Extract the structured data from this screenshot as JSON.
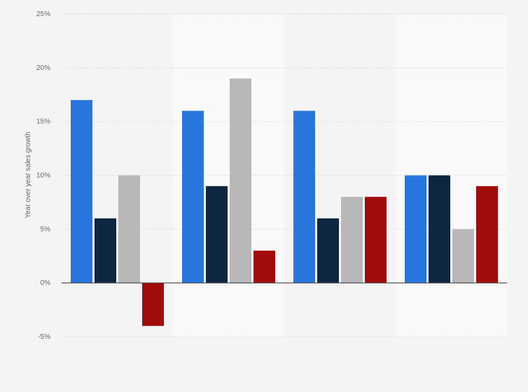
{
  "chart_data": {
    "type": "bar",
    "title": "",
    "xlabel": "",
    "ylabel": "Year over year sales growth",
    "ylim": [
      -5,
      25
    ],
    "yticks": [
      -5,
      0,
      5,
      10,
      15,
      20,
      25
    ],
    "ytick_labels": [
      "-5%",
      "0%",
      "5%",
      "10%",
      "15%",
      "20%",
      "25%"
    ],
    "categories": [
      "",
      "",
      "",
      ""
    ],
    "series": [
      {
        "values": [
          17,
          16,
          16,
          10
        ],
        "color": "#2876dd"
      },
      {
        "values": [
          6,
          9,
          6,
          10
        ],
        "color": "#0f2640"
      },
      {
        "values": [
          10,
          19,
          8,
          5
        ],
        "color": "#b8b8b8"
      },
      {
        "values": [
          -4,
          3,
          8,
          9
        ],
        "color": "#a20b0b"
      }
    ],
    "grid": true,
    "legend": "none"
  }
}
